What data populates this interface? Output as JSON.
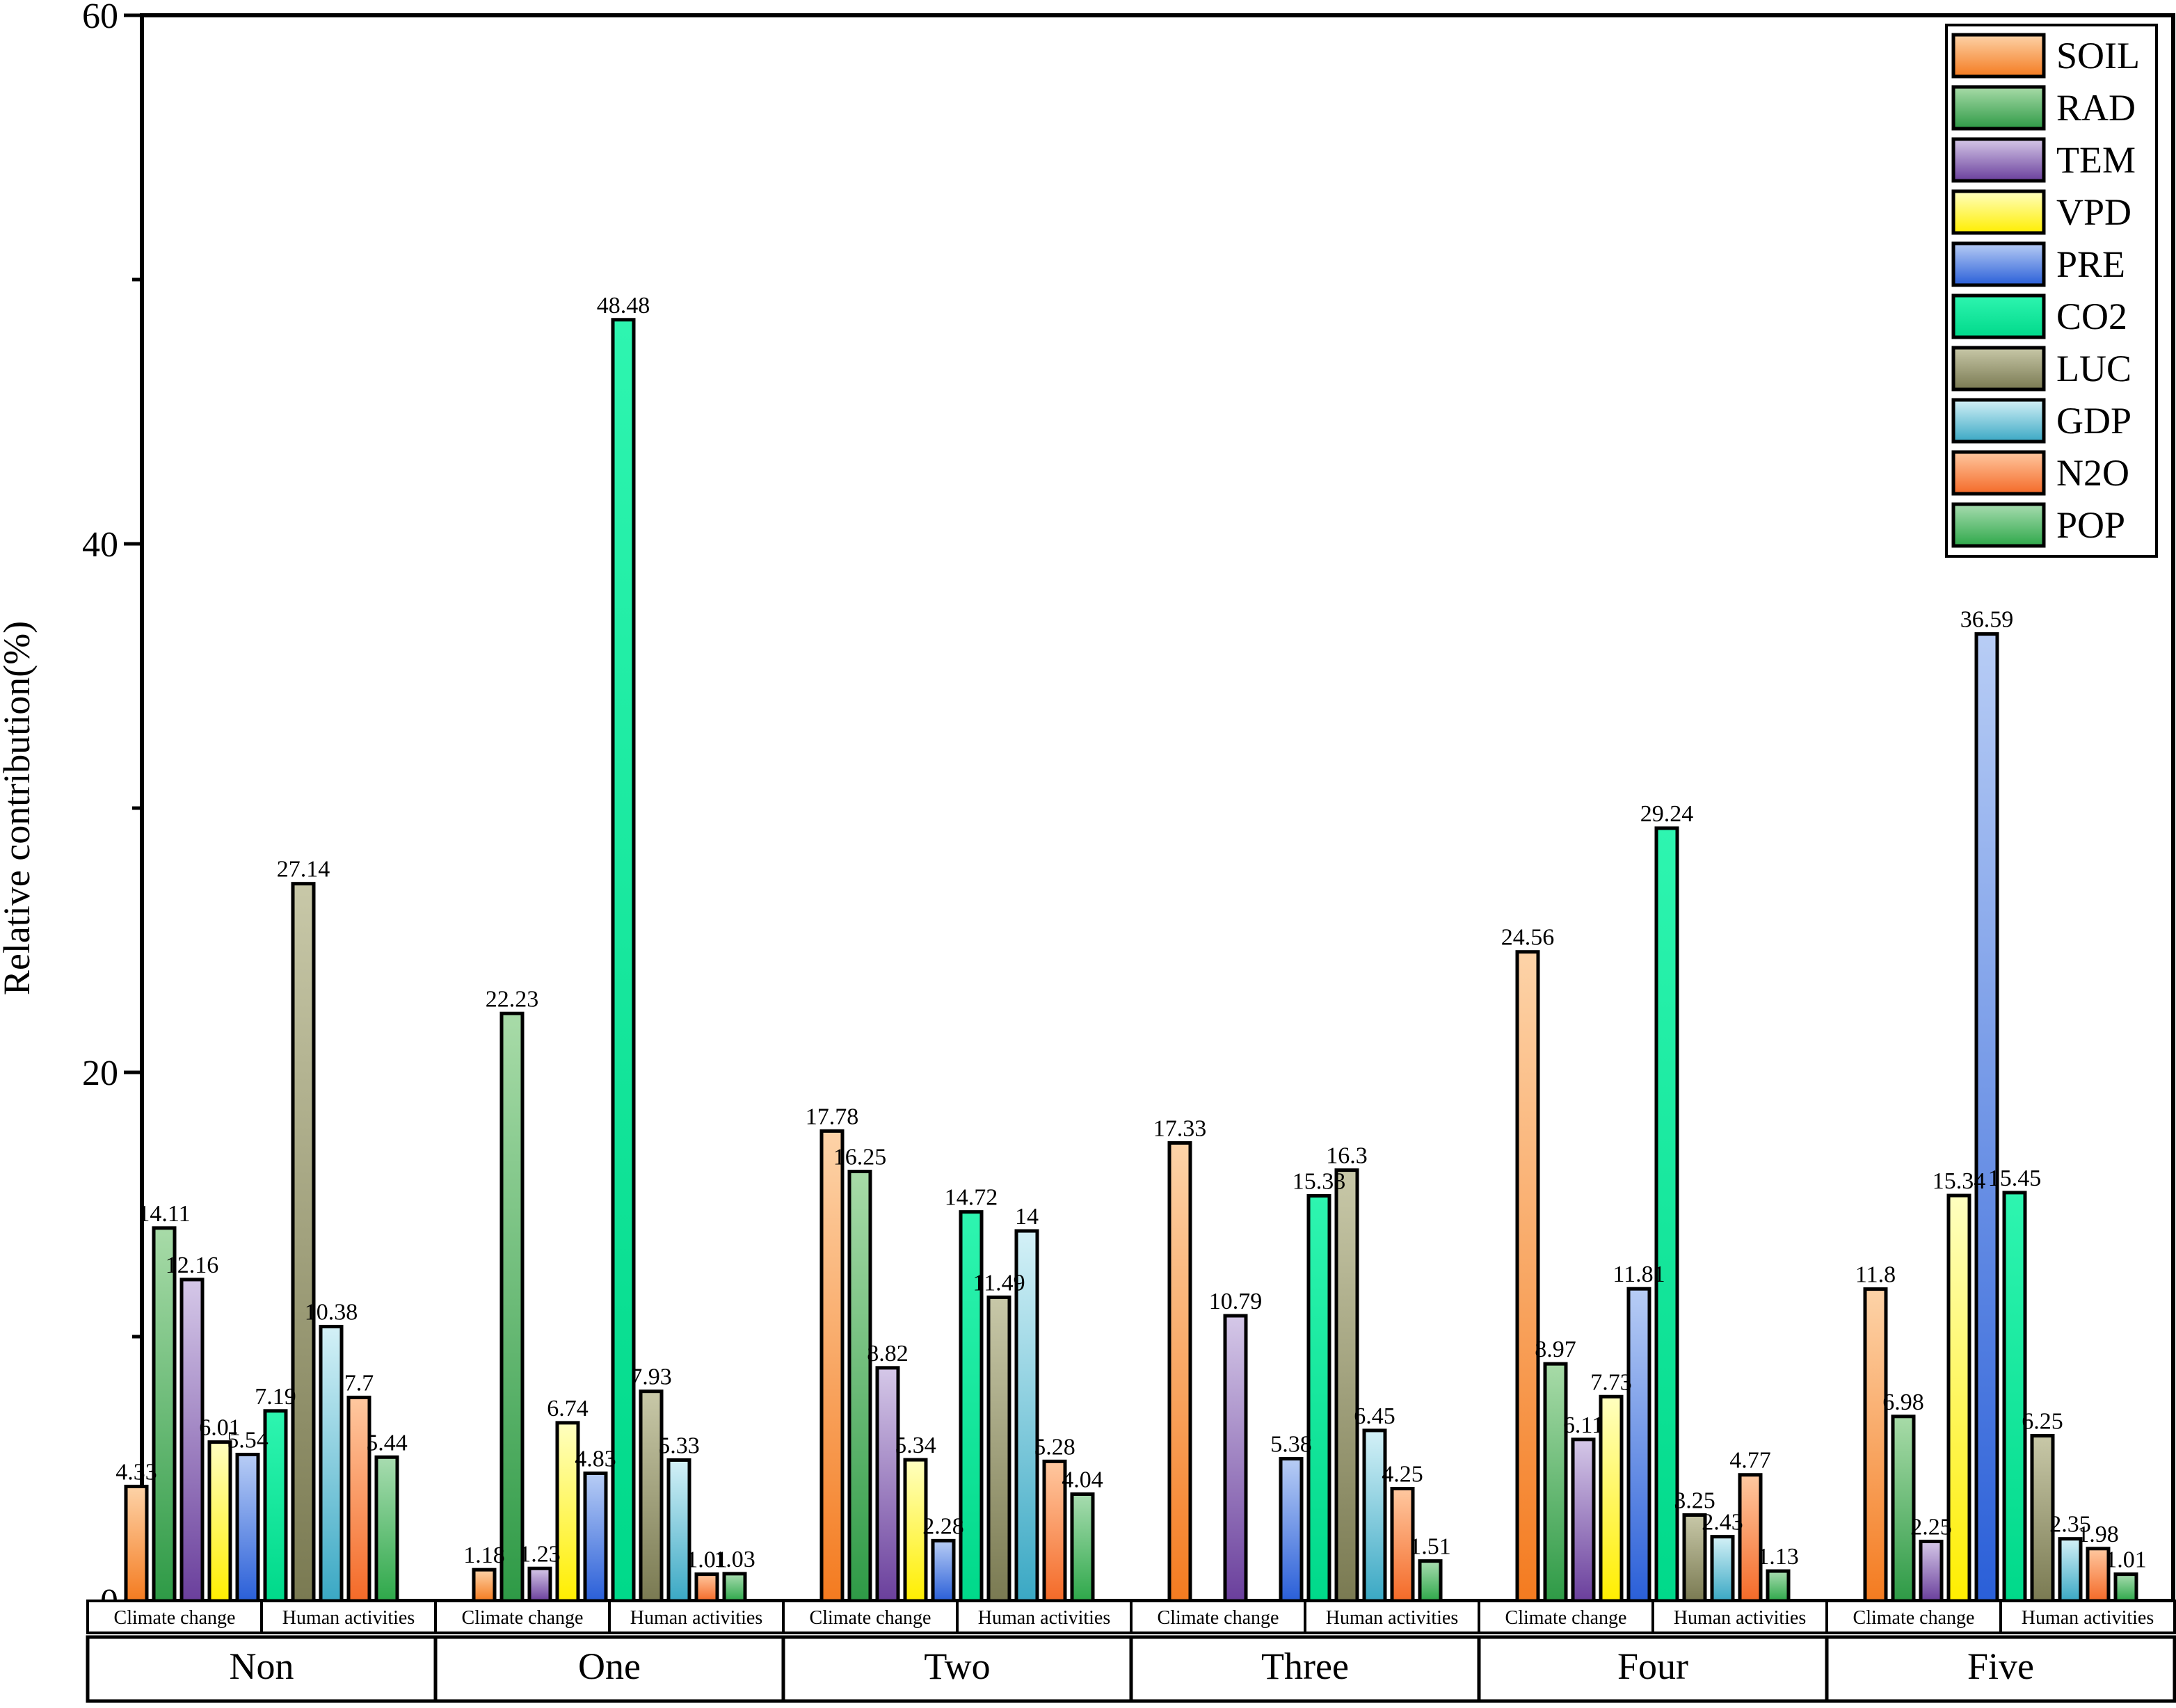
{
  "chart_data": {
    "type": "bar",
    "ylabel": "Relative contribution(%)",
    "ylim": [
      0,
      60
    ],
    "yticks": [
      0,
      20,
      40,
      60
    ],
    "groups": [
      "Non",
      "One",
      "Two",
      "Three",
      "Four",
      "Five"
    ],
    "subgroups": [
      "Climate change",
      "Human activities"
    ],
    "series": [
      {
        "name": "SOIL",
        "subgroup": "Climate change",
        "color_top": "#fdd3a8",
        "color_bottom": "#f47b20",
        "values": [
          4.33,
          1.18,
          17.78,
          17.33,
          24.56,
          11.8
        ],
        "labels": [
          "4.33",
          "1.18",
          "17.78",
          "17.33",
          "24.56",
          "11.8"
        ]
      },
      {
        "name": "RAD",
        "subgroup": "Climate change",
        "color_top": "#a8dba8",
        "color_bottom": "#2e9a46",
        "values": [
          14.11,
          22.23,
          16.25,
          null,
          8.97,
          6.98
        ],
        "labels": [
          "14.11",
          "22.23",
          "16.25",
          "",
          "8.97",
          "6.98"
        ]
      },
      {
        "name": "TEM",
        "subgroup": "Climate change",
        "color_top": "#d5c8e8",
        "color_bottom": "#6a3f9c",
        "values": [
          12.16,
          1.23,
          8.82,
          10.79,
          6.11,
          2.25
        ],
        "labels": [
          "12.16",
          "1.23",
          "8.82",
          "10.79",
          "6.11",
          "2.25"
        ]
      },
      {
        "name": "VPD",
        "subgroup": "Climate change",
        "color_top": "#ffffc0",
        "color_bottom": "#ffee00",
        "values": [
          6.01,
          6.74,
          5.34,
          null,
          7.73,
          15.34
        ],
        "labels": [
          "6.01",
          "6.74",
          "5.34",
          "",
          "7.73",
          "15.34"
        ]
      },
      {
        "name": "PRE",
        "subgroup": "Climate change",
        "color_top": "#b8cdf5",
        "color_bottom": "#2a5fd8",
        "values": [
          5.54,
          4.83,
          2.28,
          5.38,
          11.81,
          36.59
        ],
        "labels": [
          "5.54",
          "4.83",
          "2.28",
          "5.38",
          "11.81",
          "36.59"
        ]
      },
      {
        "name": "CO2",
        "subgroup": "Human activities",
        "color_top": "#2ef5b0",
        "color_bottom": "#00d98a",
        "values": [
          7.19,
          48.48,
          14.72,
          15.33,
          29.24,
          15.45
        ],
        "labels": [
          "7.19",
          "48.48",
          "14.72",
          "15.33",
          "29.24",
          "15.45"
        ]
      },
      {
        "name": "LUC",
        "subgroup": "Human activities",
        "color_top": "#c8c8a8",
        "color_bottom": "#7a7a52",
        "values": [
          27.14,
          7.93,
          11.49,
          16.3,
          3.25,
          6.25
        ],
        "labels": [
          "27.14",
          "7.93",
          "11.49",
          "16.3",
          "3.25",
          "6.25"
        ]
      },
      {
        "name": "GDP",
        "subgroup": "Human activities",
        "color_top": "#d4f1f7",
        "color_bottom": "#3aa8c4",
        "values": [
          10.38,
          5.33,
          14,
          6.45,
          2.43,
          2.35
        ],
        "labels": [
          "10.38",
          "5.33",
          "14",
          "6.45",
          "2.43",
          "2.35"
        ]
      },
      {
        "name": "N2O",
        "subgroup": "Human activities",
        "color_top": "#ffc8a0",
        "color_bottom": "#f46a28",
        "values": [
          7.7,
          1.01,
          5.28,
          4.25,
          4.77,
          1.98
        ],
        "labels": [
          "7.7",
          "1.01",
          "5.28",
          "4.25",
          "4.77",
          "1.98"
        ]
      },
      {
        "name": "POP",
        "subgroup": "Human activities",
        "color_top": "#a8dcb0",
        "color_bottom": "#2ea84a",
        "values": [
          5.44,
          1.03,
          4.04,
          1.51,
          1.13,
          1.01
        ],
        "labels": [
          "5.44",
          "1.03",
          "4.04",
          "1.51",
          "1.13",
          "1.01"
        ]
      }
    ],
    "legend_position": "top-right",
    "grid": false
  }
}
